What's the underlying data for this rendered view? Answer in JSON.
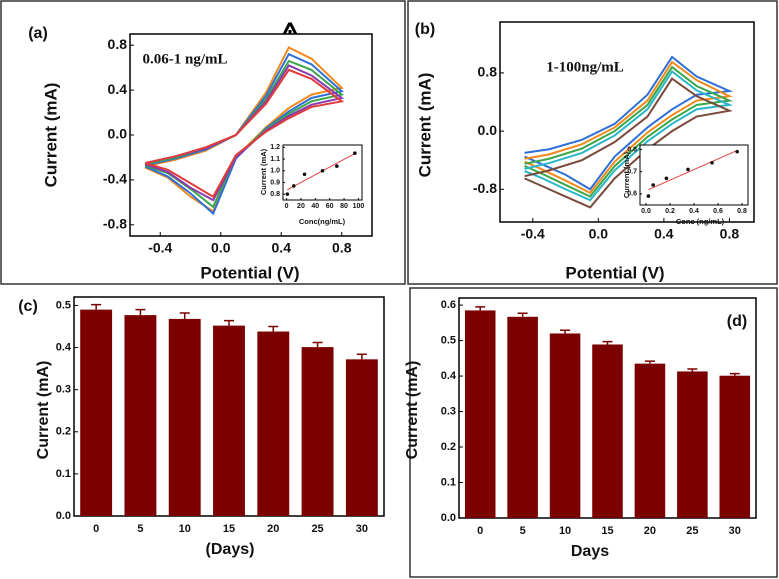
{
  "chart_data": [
    {
      "type": "line",
      "panel_label": "(a)",
      "annotation": "0.06-1 ng/mL",
      "x_label": "Potential (V)",
      "y_label": "Current (mA)",
      "x": [
        -0.5,
        -0.3,
        -0.1,
        0.1,
        0.3,
        0.45,
        0.6,
        0.8,
        0.6,
        0.45,
        0.3,
        0.1,
        -0.05,
        -0.2,
        -0.35,
        -0.5
      ],
      "series": [
        {
          "color": "#f08a1c",
          "values": [
            -0.28,
            -0.22,
            -0.14,
            0.0,
            0.38,
            0.78,
            0.68,
            0.42,
            0.36,
            0.24,
            0.07,
            -0.2,
            -0.68,
            -0.55,
            -0.38,
            -0.29
          ]
        },
        {
          "color": "#2e6fd8",
          "values": [
            -0.27,
            -0.21,
            -0.13,
            0.0,
            0.35,
            0.72,
            0.63,
            0.39,
            0.33,
            0.21,
            0.06,
            -0.21,
            -0.7,
            -0.52,
            -0.37,
            -0.28
          ]
        },
        {
          "color": "#3aa64a",
          "values": [
            -0.26,
            -0.2,
            -0.12,
            0.0,
            0.32,
            0.66,
            0.58,
            0.36,
            0.3,
            0.19,
            0.05,
            -0.19,
            -0.64,
            -0.48,
            -0.34,
            -0.27
          ]
        },
        {
          "color": "#8a3bb0",
          "values": [
            -0.25,
            -0.19,
            -0.12,
            0.0,
            0.3,
            0.62,
            0.53,
            0.33,
            0.27,
            0.17,
            0.04,
            -0.2,
            -0.58,
            -0.47,
            -0.33,
            -0.26
          ]
        },
        {
          "color": "#e03c3c",
          "values": [
            -0.25,
            -0.19,
            -0.11,
            0.0,
            0.28,
            0.58,
            0.5,
            0.3,
            0.25,
            0.15,
            0.03,
            -0.18,
            -0.55,
            -0.43,
            -0.31,
            -0.25
          ]
        }
      ],
      "xlim": [
        -0.6,
        1.0
      ],
      "xticks": [
        -0.4,
        {
          "value": 0,
          "label": "0.0"
        },
        0.4,
        0.8
      ],
      "ylim": [
        -0.9,
        0.9
      ],
      "yticks": [
        -0.8,
        -0.4,
        {
          "value": 0,
          "label": "0.0"
        },
        0.4,
        0.8
      ]
    },
    {
      "type": "scatter",
      "x_label": "Conc(ng/mL)",
      "y_label": "Current (mA)",
      "x": [
        1,
        10,
        25,
        50,
        70,
        95
      ],
      "values": [
        0.8,
        0.87,
        0.97,
        1.0,
        1.04,
        1.15
      ],
      "color": "#111111",
      "fit_color": "#e04040",
      "xlim": [
        -5,
        105
      ],
      "xticks": [
        0,
        20,
        40,
        60,
        80,
        100
      ],
      "ylim": [
        0.75,
        1.22
      ],
      "yticks": [
        0.8,
        0.9,
        {
          "value": 1.0,
          "label": "1.0"
        },
        1.1,
        1.2
      ]
    },
    {
      "type": "line",
      "panel_label": "(b)",
      "annotation": "1-100ng/mL",
      "x_label": "Potential (V)",
      "y_label": "Current (mA)",
      "x": [
        -0.45,
        -0.3,
        -0.1,
        0.1,
        0.3,
        0.45,
        0.6,
        0.8,
        0.6,
        0.45,
        0.3,
        0.1,
        -0.05,
        -0.2,
        -0.35,
        -0.45
      ],
      "series": [
        {
          "color": "#2e6fd8",
          "values": [
            -0.3,
            -0.25,
            -0.12,
            0.1,
            0.5,
            1.02,
            0.75,
            0.55,
            0.5,
            0.3,
            0.05,
            -0.35,
            -0.8,
            -0.6,
            -0.45,
            -0.35
          ]
        },
        {
          "color": "#f08a1c",
          "values": [
            -0.38,
            -0.32,
            -0.18,
            0.05,
            0.42,
            0.95,
            0.7,
            0.48,
            0.42,
            0.22,
            -0.02,
            -0.42,
            -0.85,
            -0.68,
            -0.52,
            -0.42
          ]
        },
        {
          "color": "#3aa64a",
          "values": [
            -0.45,
            -0.38,
            -0.24,
            0.0,
            0.36,
            0.88,
            0.62,
            0.42,
            0.36,
            0.16,
            -0.08,
            -0.48,
            -0.9,
            -0.74,
            -0.58,
            -0.48
          ]
        },
        {
          "color": "#29b6c9",
          "values": [
            -0.52,
            -0.44,
            -0.3,
            -0.06,
            0.3,
            0.82,
            0.56,
            0.36,
            0.3,
            0.1,
            -0.14,
            -0.54,
            -0.95,
            -0.8,
            -0.64,
            -0.55
          ]
        },
        {
          "color": "#7a4a3a",
          "values": [
            -0.62,
            -0.54,
            -0.4,
            -0.15,
            0.2,
            0.72,
            0.48,
            0.28,
            0.2,
            0.0,
            -0.25,
            -0.65,
            -1.05,
            -0.9,
            -0.75,
            -0.65
          ]
        }
      ],
      "xlim": [
        -0.6,
        0.95
      ],
      "xticks": [
        -0.4,
        {
          "value": 0,
          "label": "0.0"
        },
        0.4,
        0.8
      ],
      "ylim": [
        -1.25,
        1.5
      ],
      "yticks": [
        -0.8,
        {
          "value": 0,
          "label": "0.0"
        },
        0.8
      ]
    },
    {
      "type": "scatter",
      "x_label": "Conc (ng/mL)",
      "y_label": "Current (mA)",
      "x": [
        0.02,
        0.06,
        0.17,
        0.35,
        0.55,
        0.76
      ],
      "values": [
        0.59,
        0.64,
        0.67,
        0.71,
        0.74,
        0.79
      ],
      "color": "#111111",
      "fit_color": "#e04040",
      "xlim": [
        -0.05,
        0.85
      ],
      "xticks": [
        {
          "value": 0,
          "label": "0.0"
        },
        0.2,
        0.4,
        0.6,
        0.8
      ],
      "ylim": [
        0.55,
        0.82
      ],
      "yticks": [
        0.6,
        0.7,
        0.8
      ]
    },
    {
      "type": "bar",
      "panel_label": "(c)",
      "x_label": "(Days)",
      "y_label": "Current (mA)",
      "categories": [
        "0",
        "5",
        "10",
        "15",
        "20",
        "25",
        "30"
      ],
      "values": [
        0.49,
        0.477,
        0.468,
        0.452,
        0.438,
        0.401,
        0.372
      ],
      "errors": [
        0.012,
        0.013,
        0.014,
        0.012,
        0.012,
        0.011,
        0.012
      ],
      "color": "#7b0000",
      "ylim": [
        0,
        0.52
      ],
      "yticks": [
        {
          "value": 0,
          "label": "0.0"
        },
        0.1,
        0.2,
        0.3,
        0.4,
        0.5
      ]
    },
    {
      "type": "bar",
      "panel_label": "(d)",
      "x_label": "Days",
      "y_label": "Current (mA)",
      "categories": [
        "0",
        "5",
        "10",
        "15",
        "20",
        "25",
        "30"
      ],
      "values": [
        0.585,
        0.567,
        0.52,
        0.489,
        0.435,
        0.413,
        0.401
      ],
      "errors": [
        0.01,
        0.01,
        0.009,
        0.008,
        0.007,
        0.007,
        0.006
      ],
      "color": "#7b0000",
      "ylim": [
        0,
        0.62
      ],
      "yticks": [
        {
          "value": 0,
          "label": "0.0"
        },
        0.1,
        0.2,
        0.3,
        0.4,
        0.5,
        0.6
      ]
    }
  ]
}
